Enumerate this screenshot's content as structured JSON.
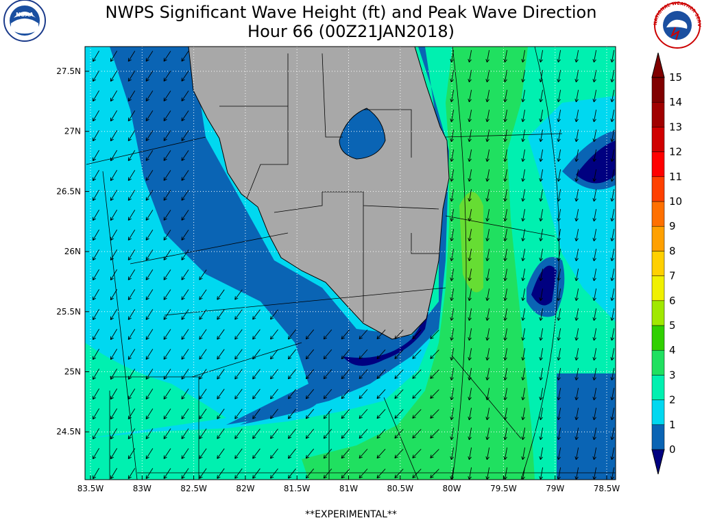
{
  "header": {
    "title": "NWPS Significant Wave Height (ft) and Peak Wave Direction",
    "subtitle": "Hour 66 (00Z21JAN2018)"
  },
  "logos": {
    "left": "NOAA",
    "right": "NATIONAL WEATHER SERVICE"
  },
  "map": {
    "lat_labels": [
      "27.5N",
      "27N",
      "26.5N",
      "26N",
      "25.5N",
      "25N",
      "24.5N"
    ],
    "lon_labels": [
      "83.5W",
      "83W",
      "82.5W",
      "82W",
      "81.5W",
      "81W",
      "80.5W",
      "80W",
      "79.5W",
      "79W",
      "78.5W"
    ]
  },
  "colorbar": {
    "labels": [
      0,
      1,
      2,
      3,
      4,
      5,
      6,
      7,
      8,
      9,
      10,
      11,
      12,
      13,
      14,
      15
    ]
  },
  "footer": "**EXPERIMENTAL**"
}
